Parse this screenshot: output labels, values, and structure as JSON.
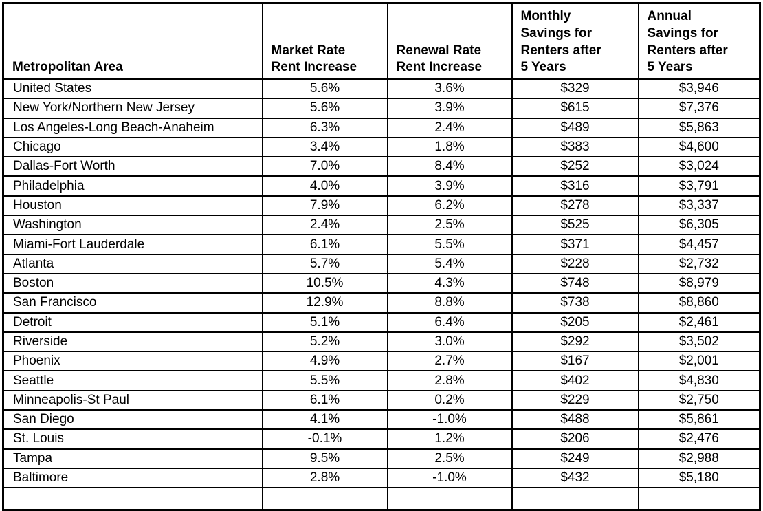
{
  "table": {
    "columns": [
      {
        "key": "metro_area",
        "label": "Metropolitan Area"
      },
      {
        "key": "market_rate",
        "label": "Market Rate\nRent Increase"
      },
      {
        "key": "renewal_rate",
        "label": "Renewal Rate\nRent Increase"
      },
      {
        "key": "monthly_savings",
        "label": "Monthly\nSavings for\nRenters after\n5 Years"
      },
      {
        "key": "annual_savings",
        "label": "Annual\nSavings for\nRenters after\n5 Years"
      }
    ],
    "rows": [
      [
        "United States",
        "5.6%",
        "3.6%",
        "$329",
        "$3,946"
      ],
      [
        "New York/Northern New Jersey",
        "5.6%",
        "3.9%",
        "$615",
        "$7,376"
      ],
      [
        "Los Angeles-Long Beach-Anaheim",
        "6.3%",
        "2.4%",
        "$489",
        "$5,863"
      ],
      [
        "Chicago",
        "3.4%",
        "1.8%",
        "$383",
        "$4,600"
      ],
      [
        "Dallas-Fort Worth",
        "7.0%",
        "8.4%",
        "$252",
        "$3,024"
      ],
      [
        "Philadelphia",
        "4.0%",
        "3.9%",
        "$316",
        "$3,791"
      ],
      [
        "Houston",
        "7.9%",
        "6.2%",
        "$278",
        "$3,337"
      ],
      [
        "Washington",
        "2.4%",
        "2.5%",
        "$525",
        "$6,305"
      ],
      [
        "Miami-Fort Lauderdale",
        "6.1%",
        "5.5%",
        "$371",
        "$4,457"
      ],
      [
        "Atlanta",
        "5.7%",
        "5.4%",
        "$228",
        "$2,732"
      ],
      [
        "Boston",
        "10.5%",
        "4.3%",
        "$748",
        "$8,979"
      ],
      [
        "San Francisco",
        "12.9%",
        "8.8%",
        "$738",
        "$8,860"
      ],
      [
        "Detroit",
        "5.1%",
        "6.4%",
        "$205",
        "$2,461"
      ],
      [
        "Riverside",
        "5.2%",
        "3.0%",
        "$292",
        "$3,502"
      ],
      [
        "Phoenix",
        "4.9%",
        "2.7%",
        "$167",
        "$2,001"
      ],
      [
        "Seattle",
        "5.5%",
        "2.8%",
        "$402",
        "$4,830"
      ],
      [
        "Minneapolis-St Paul",
        "6.1%",
        "0.2%",
        "$229",
        "$2,750"
      ],
      [
        "San Diego",
        "4.1%",
        "-1.0%",
        "$488",
        "$5,861"
      ],
      [
        "St. Louis",
        "-0.1%",
        "1.2%",
        "$206",
        "$2,476"
      ],
      [
        "Tampa",
        "9.5%",
        "2.5%",
        "$249",
        "$2,988"
      ],
      [
        "Baltimore",
        "2.8%",
        "-1.0%",
        "$432",
        "$5,180"
      ]
    ],
    "colors": {
      "border": "#000000",
      "text": "#000000",
      "background": "#ffffff"
    }
  }
}
